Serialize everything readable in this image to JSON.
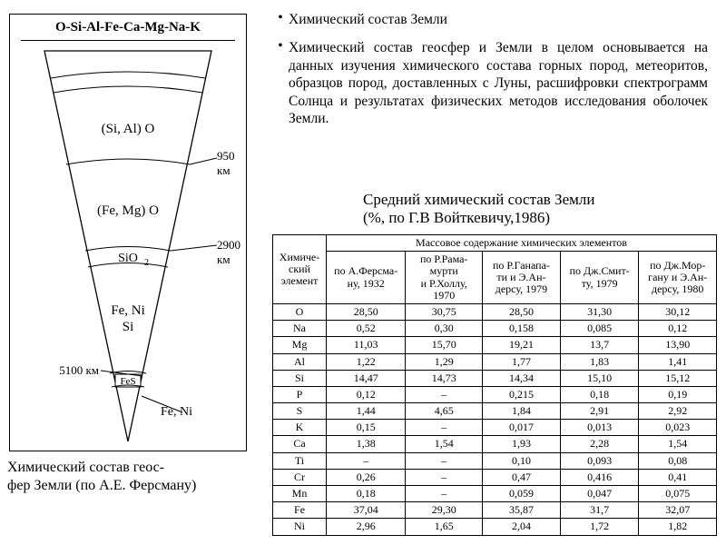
{
  "diagram": {
    "title": "O-Si-Al-Fe-Ca-Mg-Na-K",
    "layers": [
      {
        "label": "(Si, Al) O"
      },
      {
        "label": "(Fe, Mg) O"
      },
      {
        "label": "SiO₂"
      },
      {
        "label": "Fe, Ni\nSi"
      },
      {
        "label": "FeS"
      },
      {
        "label": "Fe, Ni"
      }
    ],
    "depth_labels": [
      {
        "text": "950 км"
      },
      {
        "text": "2900 км"
      },
      {
        "text": "5100 км"
      }
    ],
    "caption": "Химический состав геос-\nфер Земли (по А.Е. Ферсману)",
    "strokes": {
      "line": "#000000",
      "bg": "#ffffff"
    }
  },
  "bullets": [
    "Химический состав Земли",
    "Химический состав геосфер и Земли в целом основывается на данных изучения химического состава горных пород, метеоритов, образцов пород, доставленных с Луны, расшифровки спектрограмм Солнца и результатах физических методов исследования оболочек Земли."
  ],
  "table": {
    "title_l1": "Средний химический состав Земли",
    "title_l2": "(%, по Г.В Войткевичу,1986)",
    "header_group": "Массовое содержание химических элементов",
    "header_elem": "Химиче-\nский\nэлемент",
    "columns": [
      "по А.Ферсма-\nну, 1932",
      "по Р.Рама-\nмурти\nи Р.Холлу,\n1970",
      "по Р.Ганапа-\nти и Э.Ан-\nдерсу, 1979",
      "по Дж.Смит-\nту, 1979",
      "по Дж.Мор-\nгану и Э.Ан-\nдерсу, 1980"
    ],
    "rows": [
      [
        "O",
        "28,50",
        "30,75",
        "28,50",
        "31,30",
        "30,12"
      ],
      [
        "Na",
        "0,52",
        "0,30",
        "0,158",
        "0,085",
        "0,12"
      ],
      [
        "Mg",
        "11,03",
        "15,70",
        "19,21",
        "13,7",
        "13,90"
      ],
      [
        "Al",
        "1,22",
        "1,29",
        "1,77",
        "1,83",
        "1,41"
      ],
      [
        "Si",
        "14,47",
        "14,73",
        "14,34",
        "15,10",
        "15,12"
      ],
      [
        "P",
        "0,12",
        "–",
        "0,215",
        "0,18",
        "0,19"
      ],
      [
        "S",
        "1,44",
        "4,65",
        "1,84",
        "2,91",
        "2,92"
      ],
      [
        "K",
        "0,15",
        "–",
        "0,017",
        "0,013",
        "0,023"
      ],
      [
        "Ca",
        "1,38",
        "1,54",
        "1,93",
        "2,28",
        "1,54"
      ],
      [
        "Ti",
        "–",
        "–",
        "0,10",
        "0,093",
        "0,08"
      ],
      [
        "Cr",
        "0,26",
        "–",
        "0,47",
        "0,416",
        "0,41"
      ],
      [
        "Mn",
        "0,18",
        "–",
        "0,059",
        "0,047",
        "0,075"
      ],
      [
        "Fe",
        "37,04",
        "29,30",
        "35,87",
        "31,7",
        "32,07"
      ],
      [
        "Ni",
        "2,96",
        "1,65",
        "2,04",
        "1,72",
        "1,82"
      ]
    ]
  }
}
